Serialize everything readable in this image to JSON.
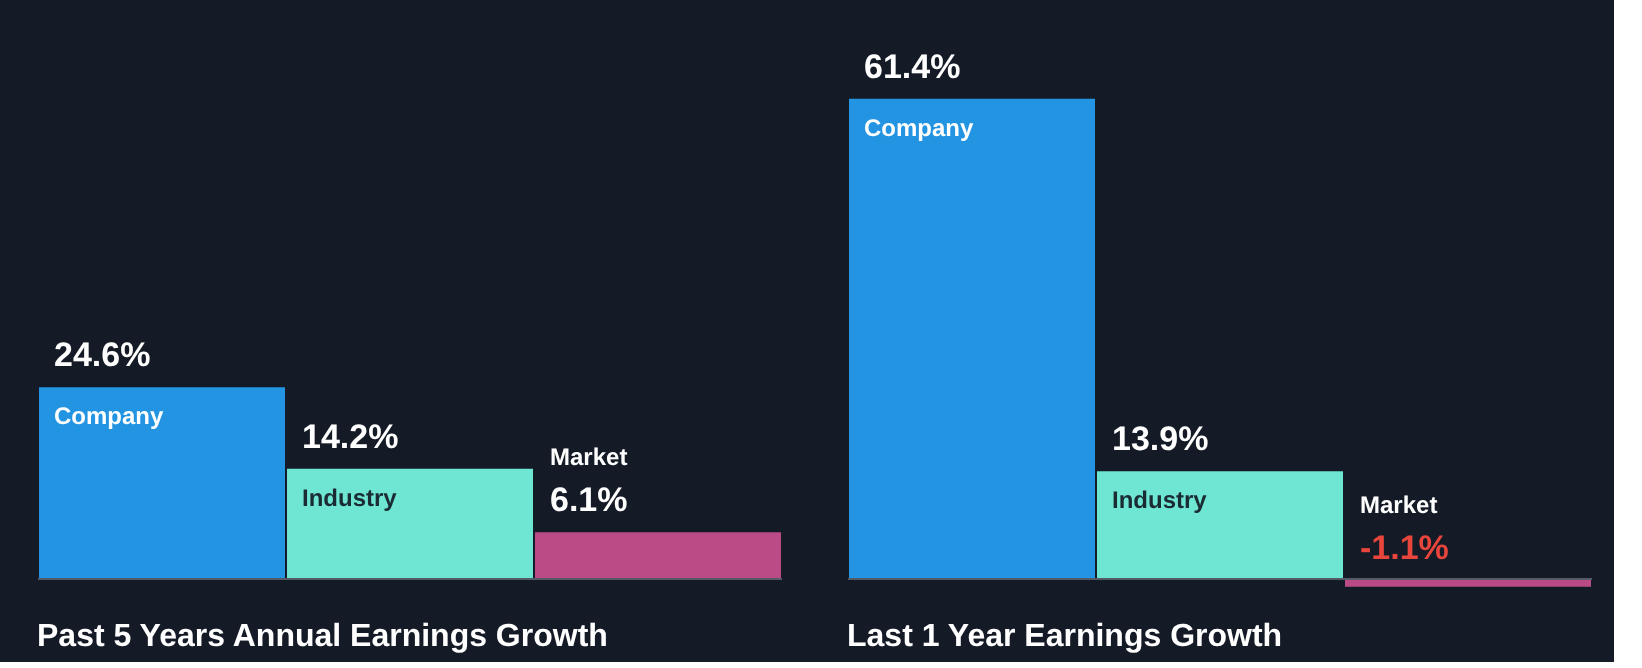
{
  "chart_data": [
    {
      "type": "bar",
      "title": "Past 5 Years Annual Earnings Growth",
      "categories": [
        "Company",
        "Industry",
        "Market"
      ],
      "values": [
        24.6,
        14.2,
        6.1
      ],
      "colors": [
        "#2394e1",
        "#6ee6d3",
        "#bb4b86"
      ],
      "value_labels": [
        "24.6%",
        "14.2%",
        "6.1%"
      ]
    },
    {
      "type": "bar",
      "title": "Last 1 Year Earnings Growth",
      "categories": [
        "Company",
        "Industry",
        "Market"
      ],
      "values": [
        61.4,
        13.9,
        -1.1
      ],
      "colors": [
        "#2394e1",
        "#6ee6d3",
        "#bb4b86"
      ],
      "value_labels": [
        "61.4%",
        "13.9%",
        "-1.1%"
      ]
    }
  ]
}
